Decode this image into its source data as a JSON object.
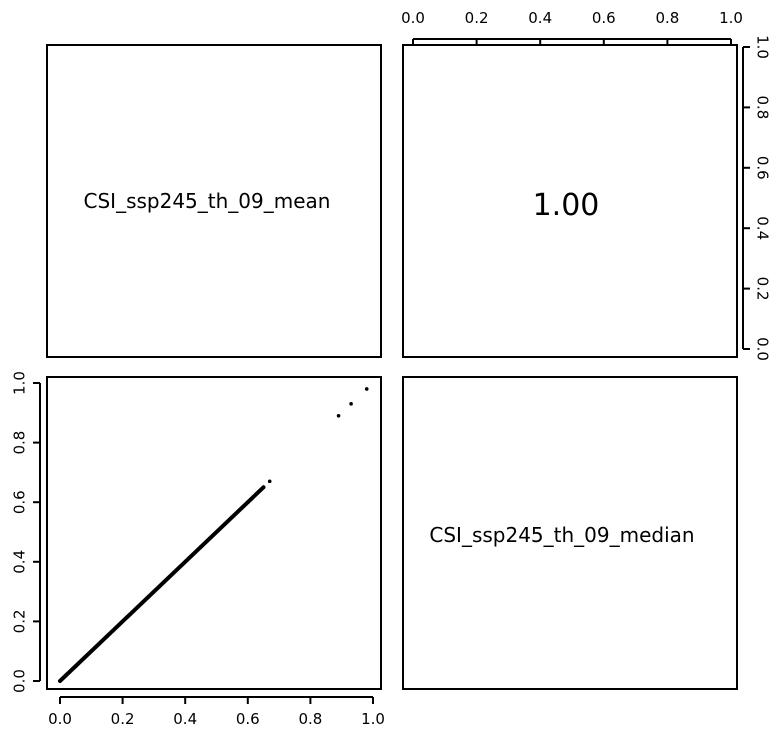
{
  "chart_data": {
    "type": "scatter",
    "variables": [
      "CSI_ssp245_th_09_mean",
      "CSI_ssp245_th_09_median"
    ],
    "correlation": "1.00",
    "axis_range": [
      0.0,
      1.0
    ],
    "tick_labels": [
      "0.0",
      "0.2",
      "0.4",
      "0.6",
      "0.8",
      "1.0"
    ],
    "grid": false,
    "series": [
      {
        "x": [
          0.0,
          0.02,
          0.05,
          0.08,
          0.1,
          0.15,
          0.2,
          0.25,
          0.3,
          0.35,
          0.4,
          0.45,
          0.5,
          0.53,
          0.55,
          0.6,
          0.63,
          0.65,
          0.67,
          0.89,
          0.93,
          0.98
        ],
        "y": [
          0.0,
          0.02,
          0.05,
          0.08,
          0.1,
          0.15,
          0.2,
          0.25,
          0.3,
          0.35,
          0.4,
          0.45,
          0.5,
          0.53,
          0.55,
          0.6,
          0.63,
          0.65,
          0.67,
          0.89,
          0.93,
          0.98
        ],
        "dense_line": {
          "from": 0.0,
          "to": 0.65
        }
      }
    ]
  }
}
